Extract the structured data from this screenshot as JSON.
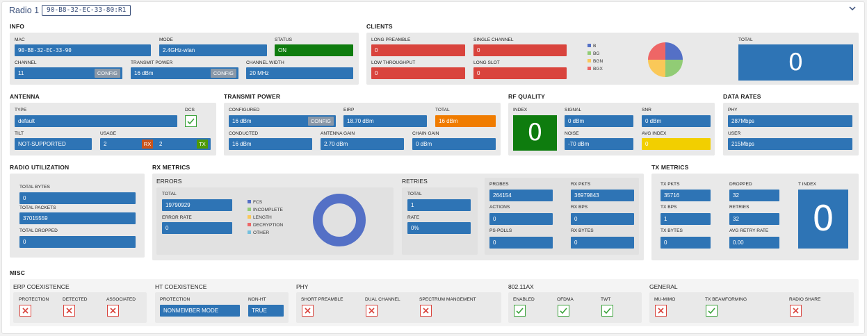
{
  "header": {
    "title": "Radio 1",
    "mac_badge": "90-B8-32-EC-33-80:R1"
  },
  "info": {
    "title": "INFO",
    "mac": {
      "label": "MAC",
      "value": "90-B8-32-EC-33-90"
    },
    "mode": {
      "label": "MODE",
      "value": "2.4GHz-wlan"
    },
    "status": {
      "label": "STATUS",
      "value": "ON"
    },
    "channel": {
      "label": "CHANNEL",
      "value": "11",
      "button": "CONFIG"
    },
    "transmit_power": {
      "label": "TRANSMIT POWER",
      "value": "16 dBm",
      "button": "CONFIG"
    },
    "channel_width": {
      "label": "CHANNEL WIDTH",
      "value": "20 MHz"
    }
  },
  "clients": {
    "title": "CLIENTS",
    "long_preamble": {
      "label": "LONG PREAMBLE",
      "value": "0"
    },
    "single_channel": {
      "label": "SINGLE CHANNEL",
      "value": "0"
    },
    "low_throughput": {
      "label": "LOW THROUGHPUT",
      "value": "0"
    },
    "long_slot": {
      "label": "LONG SLOT",
      "value": "0"
    },
    "legend": [
      {
        "name": "B",
        "color": "#5470c6"
      },
      {
        "name": "BG",
        "color": "#91cc75"
      },
      {
        "name": "BGN",
        "color": "#fac858"
      },
      {
        "name": "BGX",
        "color": "#ee6666"
      }
    ],
    "total": {
      "label": "TOTAL",
      "value": "0"
    }
  },
  "antenna": {
    "title": "ANTENNA",
    "type": {
      "label": "TYPE",
      "value": "default"
    },
    "dcs": {
      "label": "DCS",
      "checked": true
    },
    "tilt": {
      "label": "TILT",
      "value": "NOT-SUPPORTED"
    },
    "usage": {
      "label": "USAGE",
      "rx_value": "2",
      "rx_tag": "RX",
      "tx_value": "2",
      "tx_tag": "TX"
    }
  },
  "transmit_power": {
    "title": "TRANSMIT POWER",
    "configured": {
      "label": "CONFIGURED",
      "value": "16 dBm",
      "button": "CONFIG"
    },
    "eirp": {
      "label": "EIRP",
      "value": "18.70 dBm"
    },
    "total": {
      "label": "TOTAL",
      "value": "16 dBm"
    },
    "conducted": {
      "label": "CONDUCTED",
      "value": "16 dBm"
    },
    "antenna_gain": {
      "label": "ANTENNA GAIN",
      "value": "2.70 dBm"
    },
    "chain_gain": {
      "label": "CHAIN GAIN",
      "value": "0 dBm"
    }
  },
  "rf_quality": {
    "title": "RF QUALITY",
    "index": {
      "label": "INDEX",
      "value": "0"
    },
    "signal": {
      "label": "SIGNAL",
      "value": "0 dBm"
    },
    "snr": {
      "label": "SNR",
      "value": "0 dBm"
    },
    "noise": {
      "label": "NOISE",
      "value": "-70 dBm"
    },
    "avg_index": {
      "label": "AVG INDEX",
      "value": "0"
    }
  },
  "data_rates": {
    "title": "DATA RATES",
    "phy": {
      "label": "PHY",
      "value": "287Mbps"
    },
    "user": {
      "label": "USER",
      "value": "215Mbps"
    }
  },
  "radio_utilization": {
    "title": "RADIO UTILIZATION",
    "total_bytes": {
      "label": "TOTAL BYTES",
      "value": "0"
    },
    "total_packets": {
      "label": "TOTAL PACKETS",
      "value": "37015559"
    },
    "total_dropped": {
      "label": "TOTAL DROPPED",
      "value": "0"
    }
  },
  "rx_metrics": {
    "title": "RX METRICS",
    "errors": {
      "title": "ERRORS",
      "total": {
        "label": "TOTAL",
        "value": "19790929"
      },
      "error_rate": {
        "label": "ERROR RATE",
        "value": "0"
      },
      "legend": [
        {
          "name": "FCS",
          "color": "#5470c6"
        },
        {
          "name": "INCOMPLETE",
          "color": "#91cc75"
        },
        {
          "name": "LENGTH",
          "color": "#fac858"
        },
        {
          "name": "DECRYPTION",
          "color": "#ee6666"
        },
        {
          "name": "OTHER",
          "color": "#73c0de"
        }
      ]
    },
    "retries": {
      "title": "RETRIES",
      "total": {
        "label": "TOTAL",
        "value": "1"
      },
      "rate": {
        "label": "RATE",
        "value": "0%"
      }
    },
    "probes": {
      "label": "PROBES",
      "value": "264154"
    },
    "rx_pkts": {
      "label": "RX PKTS",
      "value": "36979843"
    },
    "actions": {
      "label": "ACTIONS",
      "value": "0"
    },
    "rx_bps": {
      "label": "RX BPS",
      "value": "0"
    },
    "ps_polls": {
      "label": "PS-POLLS",
      "value": "0"
    },
    "rx_bytes": {
      "label": "RX BYTES",
      "value": "0"
    }
  },
  "tx_metrics": {
    "title": "TX METRICS",
    "tx_pkts": {
      "label": "TX PKTS",
      "value": "35716"
    },
    "dropped": {
      "label": "DROPPED",
      "value": "32"
    },
    "tx_bps": {
      "label": "TX BPS",
      "value": "1"
    },
    "retries": {
      "label": "RETRIES",
      "value": "32"
    },
    "tx_bytes": {
      "label": "TX BYTES",
      "value": "0"
    },
    "avg_retry_rate": {
      "label": "AVG RETRY RATE",
      "value": "0.00"
    },
    "t_index": {
      "label": "T INDEX",
      "value": "0"
    }
  },
  "misc": {
    "title": "MISC",
    "erp": {
      "title": "ERP COEXISTENCE",
      "protection": {
        "label": "PROTECTION",
        "checked": false
      },
      "detected": {
        "label": "DETECTED",
        "checked": false
      },
      "associated": {
        "label": "ASSOCIATED",
        "checked": false
      }
    },
    "ht": {
      "title": "HT COEXISTENCE",
      "protection": {
        "label": "PROTECTION",
        "value": "NONMEMBER MODE"
      },
      "non_ht": {
        "label": "NON-HT",
        "value": "TRUE"
      }
    },
    "phy": {
      "title": "PHY",
      "short_preamble": {
        "label": "SHORT PREAMBLE",
        "checked": false
      },
      "dual_channel": {
        "label": "DUAL CHANNEL",
        "checked": false
      },
      "spectrum": {
        "label": "SPECTRUM MANGEMENT",
        "checked": false
      }
    },
    "ax": {
      "title": "802.11AX",
      "enabled": {
        "label": "ENABLED",
        "checked": true
      },
      "ofdma": {
        "label": "OFDMA",
        "checked": true
      },
      "twt": {
        "label": "TWT",
        "checked": true
      }
    },
    "general": {
      "title": "GENERAL",
      "mu_mimo": {
        "label": "MU-MIMO",
        "checked": false
      },
      "tx_beamforming": {
        "label": "TX BEAMFORMING",
        "checked": true
      },
      "radio_share": {
        "label": "RADIO SHARE",
        "checked": false
      }
    }
  }
}
